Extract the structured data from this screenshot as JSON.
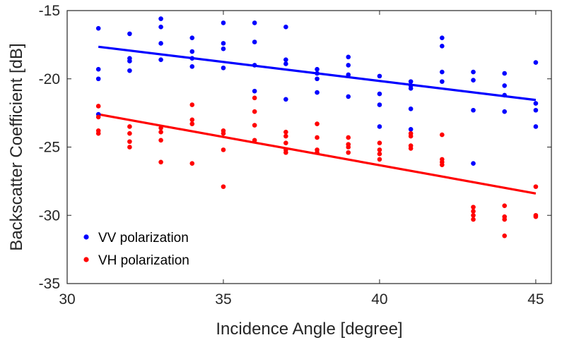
{
  "chart_data": {
    "type": "scatter",
    "xlabel": "Incidence Angle [degree]",
    "ylabel": "Backscatter Coefficient [dB]",
    "xlim": [
      30,
      45.5
    ],
    "ylim": [
      -35,
      -15
    ],
    "xticks": [
      30,
      35,
      40,
      45
    ],
    "yticks": [
      -35,
      -30,
      -25,
      -20,
      -15
    ],
    "grid": false,
    "legend_position": "bottom-left",
    "series": [
      {
        "name": "VV polarization",
        "color": "#0000ff",
        "points": [
          [
            31,
            -16.3
          ],
          [
            31,
            -19.3
          ],
          [
            31,
            -20.0
          ],
          [
            31,
            -22.6
          ],
          [
            32,
            -16.7
          ],
          [
            32,
            -18.5
          ],
          [
            32,
            -18.7
          ],
          [
            32,
            -19.4
          ],
          [
            33,
            -15.6
          ],
          [
            33,
            -16.2
          ],
          [
            33,
            -17.4
          ],
          [
            33,
            -18.6
          ],
          [
            34,
            -17.0
          ],
          [
            34,
            -18.0
          ],
          [
            34,
            -18.5
          ],
          [
            34,
            -19.1
          ],
          [
            35,
            -15.9
          ],
          [
            35,
            -17.4
          ],
          [
            35,
            -17.8
          ],
          [
            35,
            -19.2
          ],
          [
            36,
            -15.9
          ],
          [
            36,
            -17.3
          ],
          [
            36,
            -19.0
          ],
          [
            36,
            -20.9
          ],
          [
            37,
            -16.2
          ],
          [
            37,
            -18.6
          ],
          [
            37,
            -18.9
          ],
          [
            37,
            -21.5
          ],
          [
            38,
            -19.3
          ],
          [
            38,
            -19.6
          ],
          [
            38,
            -20.0
          ],
          [
            38,
            -21.0
          ],
          [
            39,
            -18.4
          ],
          [
            39,
            -19.0
          ],
          [
            39,
            -19.7
          ],
          [
            39,
            -21.3
          ],
          [
            40,
            -19.8
          ],
          [
            40,
            -21.1
          ],
          [
            40,
            -21.9
          ],
          [
            40,
            -23.5
          ],
          [
            41,
            -20.2
          ],
          [
            41,
            -20.5
          ],
          [
            41,
            -20.7
          ],
          [
            41,
            -22.2
          ],
          [
            41,
            -23.7
          ],
          [
            42,
            -17.0
          ],
          [
            42,
            -17.6
          ],
          [
            42,
            -19.5
          ],
          [
            42,
            -20.2
          ],
          [
            43,
            -19.5
          ],
          [
            43,
            -20.1
          ],
          [
            43,
            -22.3
          ],
          [
            43,
            -26.2
          ],
          [
            44,
            -19.6
          ],
          [
            44,
            -20.5
          ],
          [
            44,
            -21.2
          ],
          [
            44,
            -22.4
          ],
          [
            45,
            -18.8
          ],
          [
            45,
            -21.8
          ],
          [
            45,
            -22.3
          ],
          [
            45,
            -23.5
          ]
        ],
        "fit": [
          [
            31,
            -17.65
          ],
          [
            45,
            -21.55
          ]
        ]
      },
      {
        "name": "VH polarization",
        "color": "#ff0000",
        "points": [
          [
            31,
            -22.0
          ],
          [
            31,
            -22.8
          ],
          [
            31,
            -23.8
          ],
          [
            31,
            -24.0
          ],
          [
            32,
            -23.5
          ],
          [
            32,
            -24.0
          ],
          [
            32,
            -24.6
          ],
          [
            32,
            -25.0
          ],
          [
            33,
            -23.6
          ],
          [
            33,
            -23.9
          ],
          [
            33,
            -24.5
          ],
          [
            33,
            -26.1
          ],
          [
            34,
            -21.9
          ],
          [
            34,
            -23.0
          ],
          [
            34,
            -23.3
          ],
          [
            34,
            -26.2
          ],
          [
            35,
            -23.8
          ],
          [
            35,
            -24.0
          ],
          [
            35,
            -25.2
          ],
          [
            35,
            -27.9
          ],
          [
            36,
            -21.4
          ],
          [
            36,
            -22.4
          ],
          [
            36,
            -23.4
          ],
          [
            36,
            -24.5
          ],
          [
            37,
            -23.9
          ],
          [
            37,
            -24.2
          ],
          [
            37,
            -24.7
          ],
          [
            37,
            -25.2
          ],
          [
            37,
            -25.4
          ],
          [
            38,
            -23.3
          ],
          [
            38,
            -24.3
          ],
          [
            38,
            -25.2
          ],
          [
            38,
            -25.4
          ],
          [
            39,
            -24.3
          ],
          [
            39,
            -24.8
          ],
          [
            39,
            -25.0
          ],
          [
            39,
            -25.4
          ],
          [
            40,
            -24.7
          ],
          [
            40,
            -25.2
          ],
          [
            40,
            -25.5
          ],
          [
            40,
            -25.9
          ],
          [
            41,
            -24.0
          ],
          [
            41,
            -24.2
          ],
          [
            41,
            -24.9
          ],
          [
            41,
            -25.1
          ],
          [
            42,
            -24.1
          ],
          [
            42,
            -25.9
          ],
          [
            42,
            -26.1
          ],
          [
            42,
            -26.3
          ],
          [
            43,
            -29.4
          ],
          [
            43,
            -29.7
          ],
          [
            43,
            -30.0
          ],
          [
            43,
            -30.3
          ],
          [
            44,
            -29.3
          ],
          [
            44,
            -30.1
          ],
          [
            44,
            -30.3
          ],
          [
            44,
            -31.5
          ],
          [
            45,
            -27.9
          ],
          [
            45,
            -30.0
          ],
          [
            45,
            -30.1
          ]
        ],
        "fit": [
          [
            31,
            -22.6
          ],
          [
            45,
            -28.4
          ]
        ]
      }
    ]
  }
}
